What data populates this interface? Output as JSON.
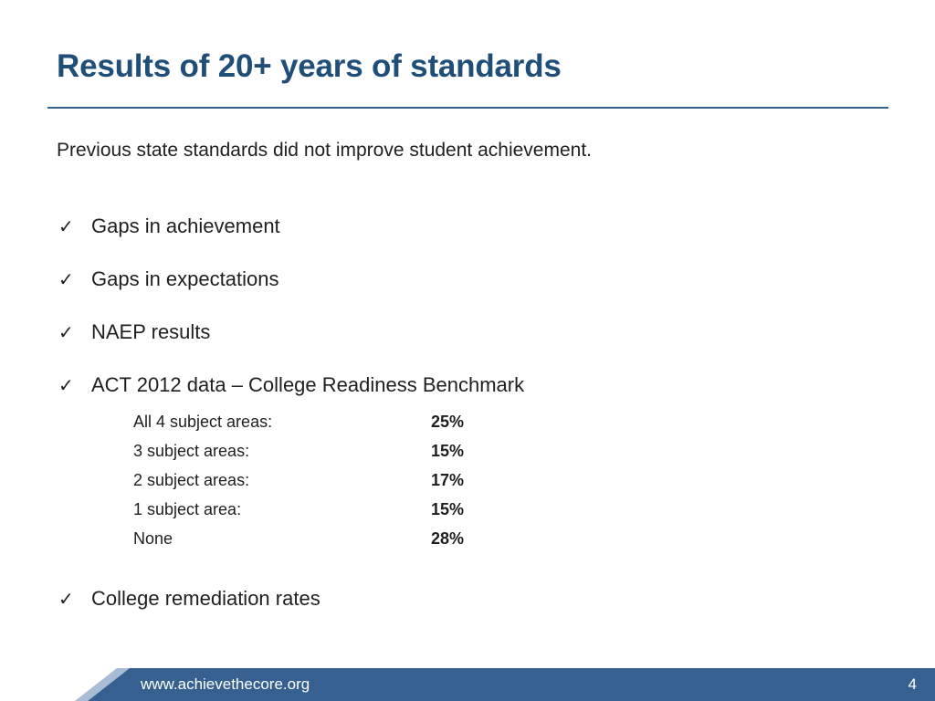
{
  "slide": {
    "title": "Results of 20+ years of standards",
    "intro": "Previous state standards did not improve student achievement.",
    "check_glyph": "✓",
    "bullets": [
      {
        "icon": "checkmark-icon",
        "label": "Gaps in achievement"
      },
      {
        "icon": "checkmark-icon",
        "label": "Gaps in expectations"
      },
      {
        "icon": "checkmark-icon",
        "label": "NAEP results"
      },
      {
        "icon": "checkmark-icon",
        "label": "ACT 2012 data – College Readiness Benchmark"
      },
      {
        "icon": "checkmark-icon",
        "label": "College remediation rates"
      }
    ],
    "benchmark_table": [
      {
        "category": "All 4 subject areas:",
        "value": "25%"
      },
      {
        "category": "3 subject areas:",
        "value": "15%"
      },
      {
        "category": "2 subject areas:",
        "value": "17%"
      },
      {
        "category": "1 subject area:",
        "value": "15%"
      },
      {
        "category": "None",
        "value": "28%"
      }
    ]
  },
  "footer": {
    "url": "www.achievethecore.org",
    "page_number": "4"
  },
  "colors": {
    "title": "#1f4e79",
    "rule": "#35608f",
    "footer_band": "#35608f",
    "footer_wedge": "#a8bcd6"
  }
}
